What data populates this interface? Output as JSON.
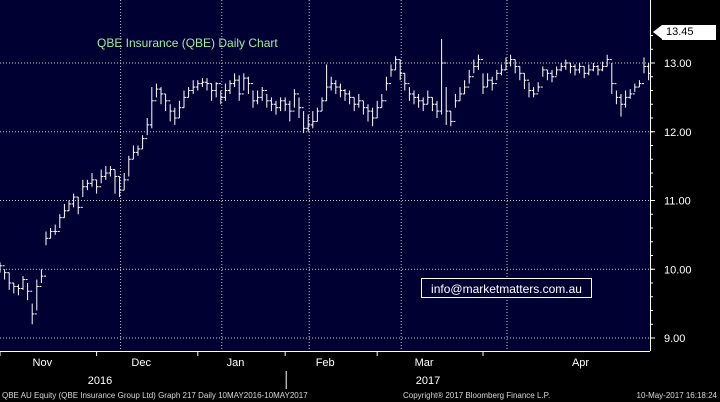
{
  "chart_data": {
    "type": "ohlc",
    "title": "QBE Insurance (QBE) Daily Chart",
    "ylim": [
      8.8,
      13.8
    ],
    "yticks": [
      9.0,
      10.0,
      11.0,
      12.0,
      13.0
    ],
    "ytick_labels": [
      "9.00",
      "10.00",
      "11.00",
      "12.00",
      "13.00"
    ],
    "last_price_label": "13.45",
    "last_price": 13.45,
    "months": [
      {
        "label": "Nov",
        "start": 0.0
      },
      {
        "label": "Dec",
        "start": 21.0
      },
      {
        "label": "Jan",
        "start": 43.0
      },
      {
        "label": "Feb",
        "start": 62.0
      },
      {
        "label": "Mar",
        "start": 82.0
      },
      {
        "label": "Apr",
        "start": 105.0
      }
    ],
    "month_boundaries": [
      0.0,
      21.0,
      43.0,
      62.0,
      82.0,
      105.0
    ],
    "x_domain": [
      -6.5,
      117.5
    ],
    "years": [
      {
        "label": "2016",
        "at": 10.5
      },
      {
        "label": "2017",
        "at": 75.0
      }
    ],
    "close": [
      10.05,
      9.95,
      9.8,
      9.75,
      9.72,
      9.85,
      9.68,
      9.35,
      9.75,
      9.9,
      10.45,
      10.55,
      10.55,
      10.75,
      10.85,
      10.95,
      11.05,
      10.9,
      11.2,
      11.25,
      11.3,
      11.2,
      11.35,
      11.4,
      11.45,
      11.35,
      11.15,
      11.3,
      11.6,
      11.7,
      11.75,
      11.9,
      12.1,
      12.45,
      12.62,
      12.55,
      12.45,
      12.3,
      12.2,
      12.35,
      12.5,
      12.6,
      12.65,
      12.7,
      12.72,
      12.7,
      12.6,
      12.7,
      12.5,
      12.6,
      12.7,
      12.75,
      12.55,
      12.78,
      12.7,
      12.45,
      12.5,
      12.6,
      12.45,
      12.4,
      12.35,
      12.45,
      12.4,
      12.3,
      12.55,
      12.35,
      12.05,
      12.1,
      12.15,
      12.3,
      12.45,
      12.65,
      12.7,
      12.65,
      12.6,
      12.55,
      12.5,
      12.4,
      12.45,
      12.35,
      12.3,
      12.2,
      12.35,
      12.45,
      12.7,
      12.9,
      13.05,
      12.85,
      12.7,
      12.55,
      12.5,
      12.45,
      12.4,
      12.5,
      12.4,
      12.3,
      13.0,
      12.3,
      12.15,
      12.45,
      12.55,
      12.65,
      12.8,
      12.95,
      13.05,
      12.65,
      12.75,
      12.7,
      12.85,
      12.9,
      13.0,
      13.05,
      12.95,
      12.85,
      12.75,
      12.6,
      12.55,
      12.65,
      12.9,
      12.85,
      12.8,
      12.9,
      12.95,
      13.0,
      12.95,
      12.9,
      12.95,
      12.85,
      12.9,
      12.95,
      12.9,
      12.95,
      13.05,
      12.7,
      12.5,
      12.4,
      12.5,
      12.55,
      12.65,
      12.7,
      12.95,
      12.85,
      12.95,
      13.0,
      12.85,
      12.95,
      12.9,
      13.0,
      12.95,
      13.45
    ],
    "high": [
      10.1,
      10.0,
      9.95,
      9.8,
      9.78,
      9.9,
      9.8,
      9.5,
      9.85,
      10.0,
      10.55,
      10.6,
      10.65,
      10.8,
      10.95,
      11.0,
      11.1,
      11.05,
      11.3,
      11.3,
      11.4,
      11.3,
      11.45,
      11.5,
      11.5,
      11.45,
      11.35,
      11.4,
      11.65,
      11.8,
      11.8,
      11.95,
      12.2,
      12.65,
      12.7,
      12.65,
      12.55,
      12.4,
      12.35,
      12.45,
      12.6,
      12.65,
      12.75,
      12.75,
      12.78,
      12.78,
      12.7,
      12.72,
      12.6,
      12.7,
      12.75,
      12.85,
      12.82,
      12.85,
      12.8,
      12.6,
      12.6,
      12.65,
      12.55,
      12.5,
      12.45,
      12.5,
      12.5,
      12.45,
      12.62,
      12.5,
      12.3,
      12.25,
      12.3,
      12.35,
      12.5,
      12.98,
      12.8,
      12.75,
      12.7,
      12.62,
      12.6,
      12.5,
      12.55,
      12.45,
      12.4,
      12.35,
      12.45,
      12.55,
      12.8,
      12.98,
      13.1,
      13.05,
      12.85,
      12.65,
      12.6,
      12.55,
      12.5,
      12.6,
      12.5,
      12.45,
      13.35,
      12.65,
      12.3,
      12.55,
      12.65,
      12.75,
      12.9,
      13.05,
      13.12,
      12.85,
      12.85,
      12.8,
      12.9,
      12.98,
      13.08,
      13.12,
      13.05,
      12.95,
      12.85,
      12.72,
      12.65,
      12.72,
      12.95,
      12.9,
      12.9,
      12.95,
      13.0,
      13.05,
      13.0,
      12.98,
      13.0,
      12.95,
      12.98,
      13.0,
      12.97,
      13.02,
      13.12,
      13.0,
      12.6,
      12.55,
      12.6,
      12.62,
      12.7,
      12.75,
      13.08,
      13.0,
      13.05,
      13.08,
      13.02,
      13.02,
      13.0,
      13.05,
      13.02,
      13.48
    ],
    "low": [
      9.95,
      9.85,
      9.7,
      9.65,
      9.62,
      9.7,
      9.55,
      9.2,
      9.4,
      9.8,
      10.35,
      10.45,
      10.5,
      10.6,
      10.75,
      10.85,
      10.9,
      10.8,
      11.05,
      11.15,
      11.2,
      11.1,
      11.25,
      11.3,
      11.35,
      11.1,
      11.05,
      11.15,
      11.35,
      11.6,
      11.65,
      11.75,
      11.95,
      12.05,
      12.5,
      12.4,
      12.3,
      12.15,
      12.1,
      12.2,
      12.35,
      12.5,
      12.55,
      12.6,
      12.65,
      12.6,
      12.45,
      12.5,
      12.4,
      12.45,
      12.55,
      12.65,
      12.45,
      12.6,
      12.55,
      12.35,
      12.4,
      12.45,
      12.35,
      12.3,
      12.25,
      12.3,
      12.3,
      12.15,
      12.35,
      12.2,
      11.98,
      12.0,
      12.05,
      12.15,
      12.3,
      12.45,
      12.6,
      12.55,
      12.5,
      12.45,
      12.4,
      12.3,
      12.35,
      12.25,
      12.15,
      12.08,
      12.2,
      12.35,
      12.6,
      12.8,
      12.9,
      12.75,
      12.6,
      12.45,
      12.4,
      12.35,
      12.3,
      12.4,
      12.3,
      12.2,
      12.25,
      12.1,
      12.08,
      12.35,
      12.45,
      12.55,
      12.7,
      12.85,
      12.9,
      12.55,
      12.65,
      12.6,
      12.75,
      12.82,
      12.9,
      12.95,
      12.85,
      12.75,
      12.62,
      12.5,
      12.5,
      12.58,
      12.8,
      12.75,
      12.72,
      12.82,
      12.88,
      12.9,
      12.85,
      12.82,
      12.85,
      12.78,
      12.82,
      12.88,
      12.82,
      12.88,
      12.95,
      12.55,
      12.4,
      12.22,
      12.35,
      12.48,
      12.58,
      12.65,
      12.85,
      12.75,
      12.85,
      12.9,
      12.78,
      12.88,
      12.82,
      12.92,
      12.88,
      13.0
    ]
  },
  "watermark_email": "info@marketmatters.com.au",
  "footer": {
    "left": "QBE AU Equity (QBE Insurance Group Ltd) Graph 217  Daily 10MAY2016-10MAY2017",
    "center": "Copyright® 2017 Bloomberg Finance L.P.",
    "right": "10-May-2017 16:18:24"
  },
  "colors": {
    "plot_bg": "#000033",
    "axis_bg": "#000000",
    "bar": "#ffffff",
    "grid": "#c8c8c8",
    "title": "#9ef09e",
    "axis_text": "#ffffff"
  }
}
